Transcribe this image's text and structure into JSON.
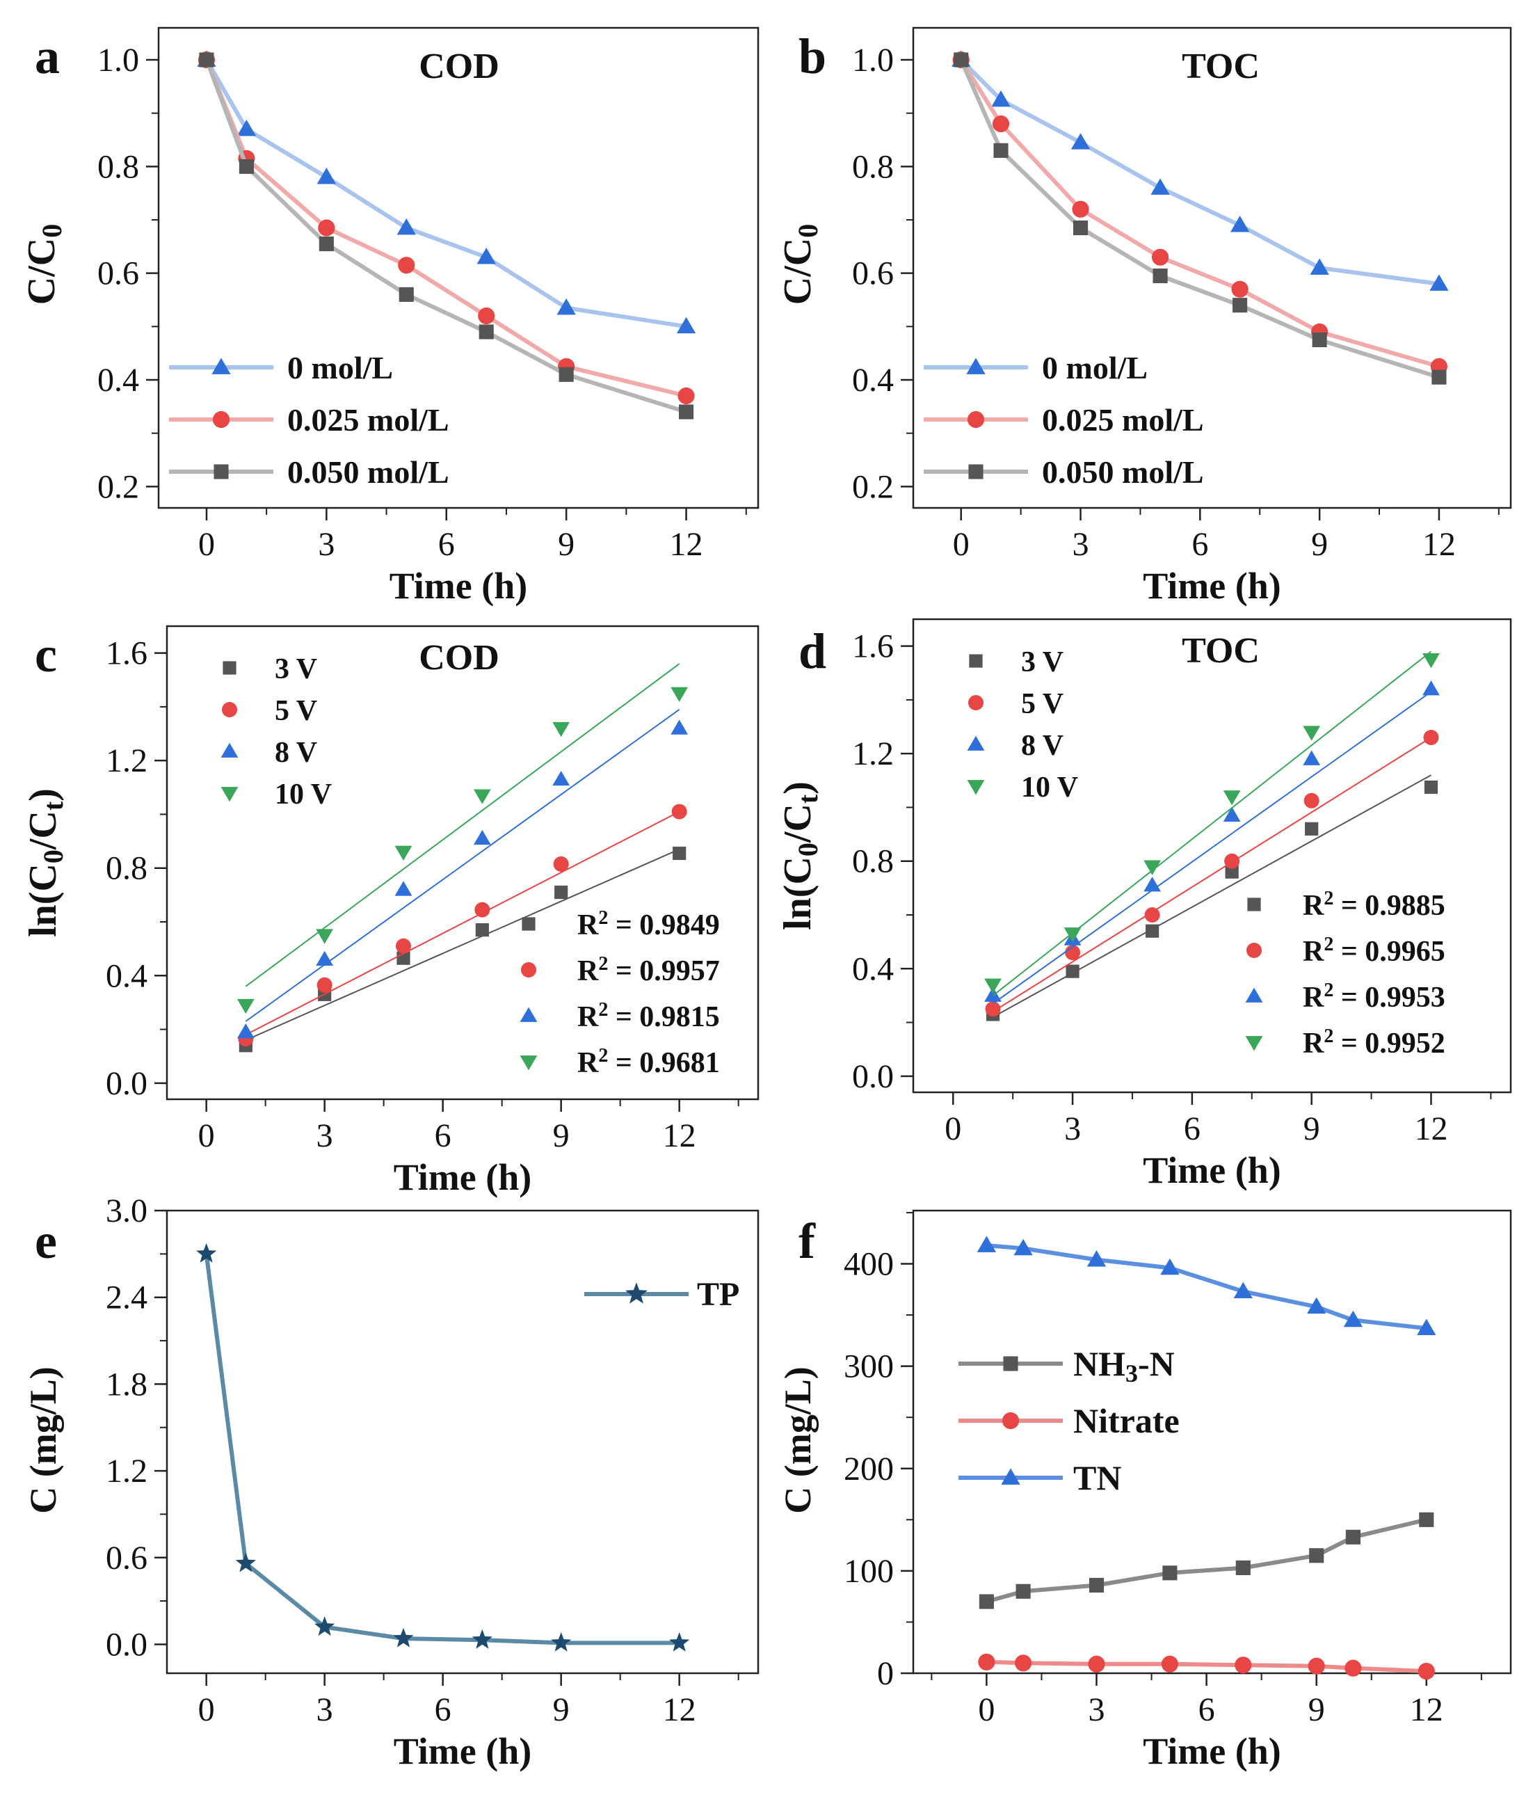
{
  "chart_data": [
    {
      "panel": "a",
      "type": "line",
      "title": "COD",
      "xlabel": "Time (h)",
      "ylabel": "C/C0",
      "ylabel_main": "C/C",
      "ylabel_sub": "0",
      "xlim": [
        -1.2,
        13.8
      ],
      "ylim": [
        0.16,
        1.06
      ],
      "xticks": [
        0,
        3,
        6,
        9,
        12
      ],
      "yticks": [
        0.2,
        0.4,
        0.6,
        0.8,
        1.0
      ],
      "ytick_labels": [
        "0.2",
        "0.4",
        "0.6",
        "0.8",
        "1.0"
      ],
      "legend_position": "bottom-left",
      "series": [
        {
          "name": "0 mol/L",
          "marker": "triangle",
          "color": "#2f6fd9",
          "line_color": "#a7c3ee",
          "x": [
            0,
            1,
            3,
            5,
            7,
            9,
            12
          ],
          "y": [
            1.0,
            0.87,
            0.78,
            0.685,
            0.63,
            0.535,
            0.5
          ]
        },
        {
          "name": "0.025 mol/L",
          "marker": "circle",
          "color": "#e84545",
          "line_color": "#f2a9a9",
          "x": [
            0,
            1,
            3,
            5,
            7,
            9,
            12
          ],
          "y": [
            1.0,
            0.815,
            0.685,
            0.615,
            0.52,
            0.425,
            0.37
          ]
        },
        {
          "name": "0.050 mol/L",
          "marker": "square",
          "color": "#555555",
          "line_color": "#b5b5b5",
          "x": [
            0,
            1,
            3,
            5,
            7,
            9,
            12
          ],
          "y": [
            1.0,
            0.8,
            0.655,
            0.56,
            0.49,
            0.41,
            0.34
          ]
        }
      ]
    },
    {
      "panel": "b",
      "type": "line",
      "title": "TOC",
      "xlabel": "Time (h)",
      "ylabel": "C/C0",
      "ylabel_main": "C/C",
      "ylabel_sub": "0",
      "xlim": [
        -1.2,
        13.8
      ],
      "ylim": [
        0.16,
        1.06
      ],
      "xticks": [
        0,
        3,
        6,
        9,
        12
      ],
      "yticks": [
        0.2,
        0.4,
        0.6,
        0.8,
        1.0
      ],
      "ytick_labels": [
        "0.2",
        "0.4",
        "0.6",
        "0.8",
        "1.0"
      ],
      "legend_position": "bottom-left",
      "series": [
        {
          "name": "0 mol/L",
          "marker": "triangle",
          "color": "#2f6fd9",
          "line_color": "#a7c3ee",
          "x": [
            0,
            1,
            3,
            5,
            7,
            9,
            12
          ],
          "y": [
            1.0,
            0.925,
            0.845,
            0.76,
            0.69,
            0.61,
            0.58
          ]
        },
        {
          "name": "0.025 mol/L",
          "marker": "circle",
          "color": "#e84545",
          "line_color": "#f2a9a9",
          "x": [
            0,
            1,
            3,
            5,
            7,
            9,
            12
          ],
          "y": [
            1.0,
            0.88,
            0.72,
            0.63,
            0.57,
            0.49,
            0.425
          ]
        },
        {
          "name": "0.050 mol/L",
          "marker": "square",
          "color": "#555555",
          "line_color": "#b5b5b5",
          "x": [
            0,
            1,
            3,
            5,
            7,
            9,
            12
          ],
          "y": [
            1.0,
            0.83,
            0.685,
            0.595,
            0.54,
            0.475,
            0.405
          ]
        }
      ]
    },
    {
      "panel": "c",
      "type": "scatter",
      "title": "COD",
      "xlabel": "Time (h)",
      "ylabel": "ln(C0/Ct)",
      "ylabel_parts": [
        "ln(C",
        "0",
        "/C",
        "t",
        ")"
      ],
      "xlim": [
        -1,
        14
      ],
      "ylim": [
        -0.06,
        1.7
      ],
      "xticks": [
        0,
        3,
        6,
        9,
        12
      ],
      "yticks": [
        0.0,
        0.4,
        0.8,
        1.2,
        1.6
      ],
      "ytick_labels": [
        "0.0",
        "0.4",
        "0.8",
        "1.2",
        "1.6"
      ],
      "legend_position": "top-left",
      "r2_legend_position": "bottom-right",
      "series": [
        {
          "name": "3 V",
          "marker": "square",
          "color": "#555555",
          "r2": "0.9849",
          "x": [
            1,
            3,
            5,
            7,
            9,
            12
          ],
          "y": [
            0.14,
            0.33,
            0.465,
            0.57,
            0.71,
            0.855
          ],
          "fit": [
            [
              1,
              0.16
            ],
            [
              12,
              0.87
            ]
          ]
        },
        {
          "name": "5 V",
          "marker": "circle",
          "color": "#e84545",
          "r2": "0.9957",
          "x": [
            1,
            3,
            5,
            7,
            9,
            12
          ],
          "y": [
            0.165,
            0.365,
            0.51,
            0.645,
            0.815,
            1.01
          ],
          "fit": [
            [
              1,
              0.18
            ],
            [
              12,
              1.01
            ]
          ]
        },
        {
          "name": "8 V",
          "marker": "triangle",
          "color": "#2f6fd9",
          "r2": "0.9815",
          "x": [
            1,
            3,
            5,
            7,
            9,
            12
          ],
          "y": [
            0.19,
            0.46,
            0.72,
            0.91,
            1.13,
            1.32
          ],
          "fit": [
            [
              1,
              0.23
            ],
            [
              12,
              1.39
            ]
          ]
        },
        {
          "name": "10 V",
          "marker": "triangle-down",
          "color": "#3aa65a",
          "r2": "0.9681",
          "x": [
            1,
            3,
            5,
            7,
            9,
            12
          ],
          "y": [
            0.29,
            0.55,
            0.86,
            1.07,
            1.32,
            1.45
          ],
          "fit": [
            [
              1,
              0.36
            ],
            [
              12,
              1.56
            ]
          ]
        }
      ]
    },
    {
      "panel": "d",
      "type": "scatter",
      "title": "TOC",
      "xlabel": "Time (h)",
      "ylabel": "ln(C0/Ct)",
      "ylabel_parts": [
        "ln(C",
        "0",
        "/C",
        "t",
        ")"
      ],
      "xlim": [
        -1,
        14
      ],
      "ylim": [
        -0.06,
        1.7
      ],
      "xticks": [
        0,
        3,
        6,
        9,
        12
      ],
      "yticks": [
        0.0,
        0.4,
        0.8,
        1.2,
        1.6
      ],
      "ytick_labels": [
        "0.0",
        "0.4",
        "0.8",
        "1.2",
        "1.6"
      ],
      "legend_position": "top-left",
      "r2_legend_position": "bottom-right",
      "series": [
        {
          "name": "3 V",
          "marker": "square",
          "color": "#555555",
          "r2": "0.9885",
          "x": [
            1,
            3,
            5,
            7,
            9,
            12
          ],
          "y": [
            0.23,
            0.39,
            0.54,
            0.76,
            0.92,
            1.075
          ],
          "fit": [
            [
              1,
              0.22
            ],
            [
              12,
              1.12
            ]
          ]
        },
        {
          "name": "5 V",
          "marker": "circle",
          "color": "#e84545",
          "r2": "0.9965",
          "x": [
            1,
            3,
            5,
            7,
            9,
            12
          ],
          "y": [
            0.25,
            0.46,
            0.6,
            0.8,
            1.025,
            1.26
          ],
          "fit": [
            [
              1,
              0.24
            ],
            [
              12,
              1.26
            ]
          ]
        },
        {
          "name": "8 V",
          "marker": "triangle",
          "color": "#2f6fd9",
          "r2": "0.9953",
          "x": [
            1,
            3,
            5,
            7,
            9,
            12
          ],
          "y": [
            0.3,
            0.51,
            0.71,
            0.97,
            1.18,
            1.44
          ],
          "fit": [
            [
              1,
              0.27
            ],
            [
              12,
              1.43
            ]
          ]
        },
        {
          "name": "10 V",
          "marker": "triangle-down",
          "color": "#3aa65a",
          "r2": "0.9952",
          "x": [
            1,
            3,
            5,
            7,
            9,
            12
          ],
          "y": [
            0.34,
            0.53,
            0.78,
            1.04,
            1.28,
            1.55
          ],
          "fit": [
            [
              1,
              0.3
            ],
            [
              12,
              1.58
            ]
          ]
        }
      ]
    },
    {
      "panel": "e",
      "type": "line",
      "title": "",
      "xlabel": "Time (h)",
      "ylabel": "C (mg/L)",
      "xlim": [
        -1,
        14
      ],
      "ylim": [
        -0.2,
        3.0
      ],
      "xticks": [
        0,
        3,
        6,
        9,
        12
      ],
      "yticks": [
        0.0,
        0.6,
        1.2,
        1.8,
        2.4,
        3.0
      ],
      "ytick_labels": [
        "0.0",
        "0.6",
        "1.2",
        "1.8",
        "2.4",
        "3.0"
      ],
      "legend_position": "top-right",
      "series": [
        {
          "name": "TP",
          "marker": "star",
          "color": "#1d4a6e",
          "line_color": "#5b8aa6",
          "x": [
            0,
            1,
            3,
            5,
            7,
            9,
            12
          ],
          "y": [
            2.7,
            0.56,
            0.12,
            0.04,
            0.03,
            0.01,
            0.01
          ]
        }
      ]
    },
    {
      "panel": "f",
      "type": "line",
      "title": "",
      "xlabel": "Time (h)",
      "ylabel": "C (mg/L)",
      "xlim": [
        -2,
        14.3
      ],
      "ylim": [
        0,
        452
      ],
      "xticks": [
        0,
        3,
        6,
        9,
        12
      ],
      "yticks": [
        0,
        100,
        200,
        300,
        400
      ],
      "ytick_labels": [
        "0",
        "100",
        "200",
        "300",
        "400"
      ],
      "legend_position": "middle-left",
      "series": [
        {
          "name": "NH3-N",
          "label_main": "NH",
          "label_sub": "3",
          "label_tail": "-N",
          "marker": "square",
          "color": "#555555",
          "line_color": "#8a8a8a",
          "x": [
            0,
            1,
            3,
            5,
            7,
            9,
            10,
            12
          ],
          "y": [
            70,
            80,
            86,
            98,
            103,
            115,
            133,
            150
          ]
        },
        {
          "name": "Nitrate",
          "marker": "circle",
          "color": "#e84545",
          "line_color": "#ee8a8a",
          "x": [
            0,
            1,
            3,
            5,
            7,
            9,
            10,
            12
          ],
          "y": [
            11,
            10,
            9,
            9,
            8,
            7,
            5,
            2
          ]
        },
        {
          "name": "TN",
          "marker": "triangle",
          "color": "#2f6fd9",
          "line_color": "#5b8fe0",
          "x": [
            0,
            1,
            3,
            5,
            7,
            9,
            10,
            12
          ],
          "y": [
            418,
            415,
            404,
            396,
            373,
            358,
            345,
            337
          ]
        }
      ]
    }
  ]
}
